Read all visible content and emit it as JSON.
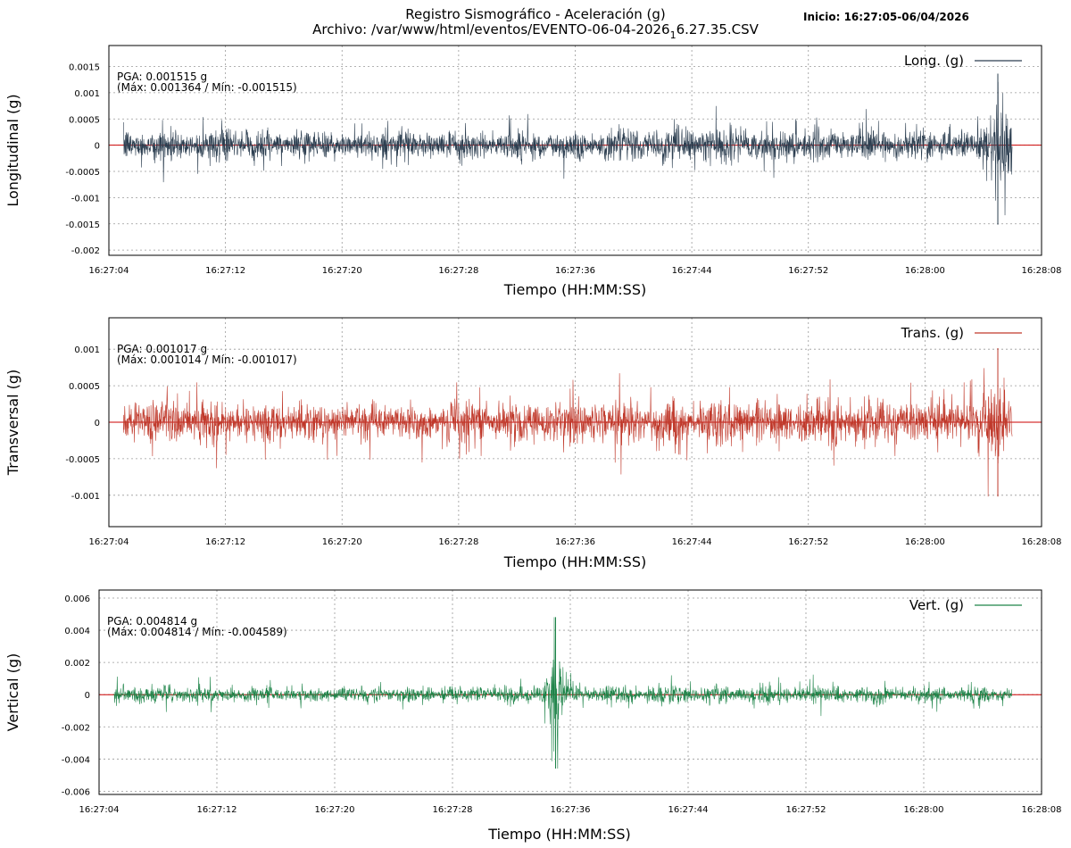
{
  "header": {
    "title": "Registro Sismográfico - Aceleración (g)",
    "subtitle_prefix": "Archivo: /var/www/html/eventos/EVENTO-06-04-2026",
    "subtitle_sub": "1",
    "subtitle_suffix": "6.27.35.CSV",
    "start": "Inicio: 16:27:05-06/04/2026"
  },
  "chart_data": [
    {
      "type": "line",
      "name": "longitudinal",
      "ylabel": "Longitudinal (g)",
      "xlabel": "Tiempo (HH:MM:SS)",
      "legend": "Long. (g)",
      "legend_position": "top-right",
      "color": "#2c3e50",
      "label_color": "#0000ff",
      "pga_text": "PGA: 0.001515 g",
      "maxmin_text": "(Máx: 0.001364 / Mín: -0.001515)",
      "pga": 0.001515,
      "max": 0.001364,
      "min": -0.001515,
      "ylim": [
        -0.0021,
        0.0019
      ],
      "yticks": [
        -0.002,
        -0.0015,
        -0.001,
        -0.0005,
        0,
        0.0005,
        0.001,
        0.0015
      ],
      "ytick_labels": [
        "-0.002",
        "-0.0015",
        "-0.001",
        "-0.0005",
        "0",
        "0.0005",
        "0.001",
        "0.0015"
      ],
      "xlim": [
        "16:27:04",
        "16:28:08"
      ],
      "xticks": [
        "16:27:04",
        "16:27:12",
        "16:27:20",
        "16:27:28",
        "16:27:36",
        "16:27:44",
        "16:27:52",
        "16:28:00",
        "16:28:08"
      ],
      "data_range": [
        "16:27:05",
        "16:28:06"
      ],
      "typical_amplitude": 0.0004,
      "burst_time": "16:28:05",
      "burst_amplitude": 0.0013,
      "grid": true,
      "zero_line_color": "#cc0000"
    },
    {
      "type": "line",
      "name": "transversal",
      "ylabel": "Transversal (g)",
      "xlabel": "Tiempo (HH:MM:SS)",
      "legend": "Trans. (g)",
      "legend_position": "top-right",
      "color": "#c0392b",
      "label_color": "#ff0000",
      "pga_text": "PGA: 0.001017 g",
      "maxmin_text": "(Máx: 0.001014 / Mín: -0.001017)",
      "pga": 0.001017,
      "max": 0.001014,
      "min": -0.001017,
      "ylim": [
        -0.00143,
        0.00143
      ],
      "yticks": [
        -0.001,
        -0.0005,
        0,
        0.0005,
        0.001
      ],
      "ytick_labels": [
        "-0.001",
        "-0.0005",
        "0",
        "0.0005",
        "0.001"
      ],
      "xlim": [
        "16:27:04",
        "16:28:08"
      ],
      "xticks": [
        "16:27:04",
        "16:27:12",
        "16:27:20",
        "16:27:28",
        "16:27:36",
        "16:27:44",
        "16:27:52",
        "16:28:00",
        "16:28:08"
      ],
      "data_range": [
        "16:27:05",
        "16:28:06"
      ],
      "typical_amplitude": 0.0004,
      "burst_time": "16:28:05",
      "burst_amplitude": 0.0009,
      "grid": true,
      "zero_line_color": "#cc0000"
    },
    {
      "type": "line",
      "name": "vertical",
      "ylabel": "Vertical (g)",
      "xlabel": "Tiempo (HH:MM:SS)",
      "legend": "Vert. (g)",
      "legend_position": "top-right",
      "color": "#1e8449",
      "label_color": "#006400",
      "pga_text": "PGA: 0.004814 g",
      "maxmin_text": "(Máx: 0.004814 / Mín: -0.004589)",
      "pga": 0.004814,
      "max": 0.004814,
      "min": -0.004589,
      "ylim": [
        -0.0062,
        0.0065
      ],
      "yticks": [
        -0.006,
        -0.004,
        -0.002,
        0,
        0.002,
        0.004,
        0.006
      ],
      "ytick_labels": [
        "-0.006",
        "-0.004",
        "-0.002",
        "0",
        "0.002",
        "0.004",
        "0.006"
      ],
      "xlim": [
        "16:27:04",
        "16:28:08"
      ],
      "xticks": [
        "16:27:04",
        "16:27:12",
        "16:27:20",
        "16:27:28",
        "16:27:36",
        "16:27:44",
        "16:27:52",
        "16:28:00",
        "16:28:08"
      ],
      "data_range": [
        "16:27:05",
        "16:28:06"
      ],
      "typical_amplitude": 0.0007,
      "burst_time": "16:27:35",
      "burst_amplitude": 0.0047,
      "grid": true,
      "zero_line_color": "#cc0000"
    }
  ]
}
